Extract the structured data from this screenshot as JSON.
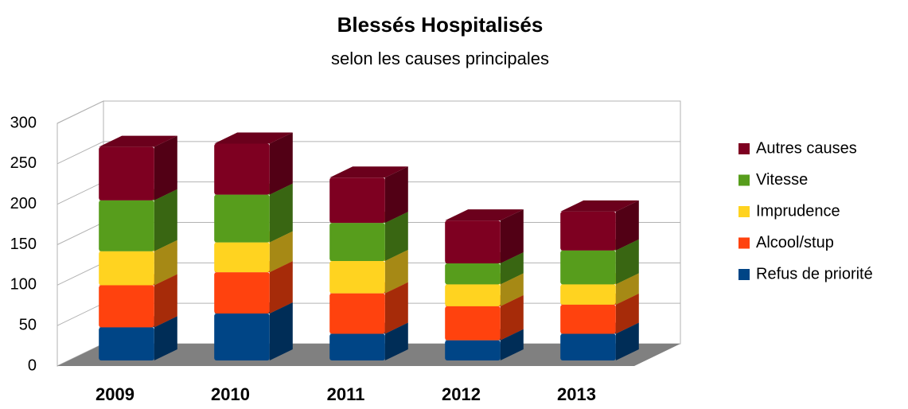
{
  "chart_data": {
    "type": "bar3d_stacked",
    "title": "Blessés Hospitalisés",
    "subtitle": "selon les causes principales",
    "categories": [
      "2009",
      "2010",
      "2011",
      "2012",
      "2013"
    ],
    "series": [
      {
        "name": "Refus de priorité",
        "color": "#004586",
        "values": [
          41,
          58,
          33,
          25,
          33
        ]
      },
      {
        "name": "Alcool/stup",
        "color": "#ff420e",
        "values": [
          52,
          51,
          50,
          42,
          36
        ]
      },
      {
        "name": "Imprudence",
        "color": "#ffd320",
        "values": [
          42,
          37,
          40,
          27,
          25
        ]
      },
      {
        "name": "Vitesse",
        "color": "#579d1c",
        "values": [
          63,
          59,
          47,
          26,
          42
        ]
      },
      {
        "name": "Autres causes",
        "color": "#7e0021",
        "values": [
          66,
          63,
          56,
          53,
          48
        ]
      }
    ],
    "ylim": [
      0,
      300
    ],
    "yticks": [
      0,
      50,
      100,
      150,
      200,
      250,
      300
    ],
    "grid": true,
    "legend": "right"
  }
}
